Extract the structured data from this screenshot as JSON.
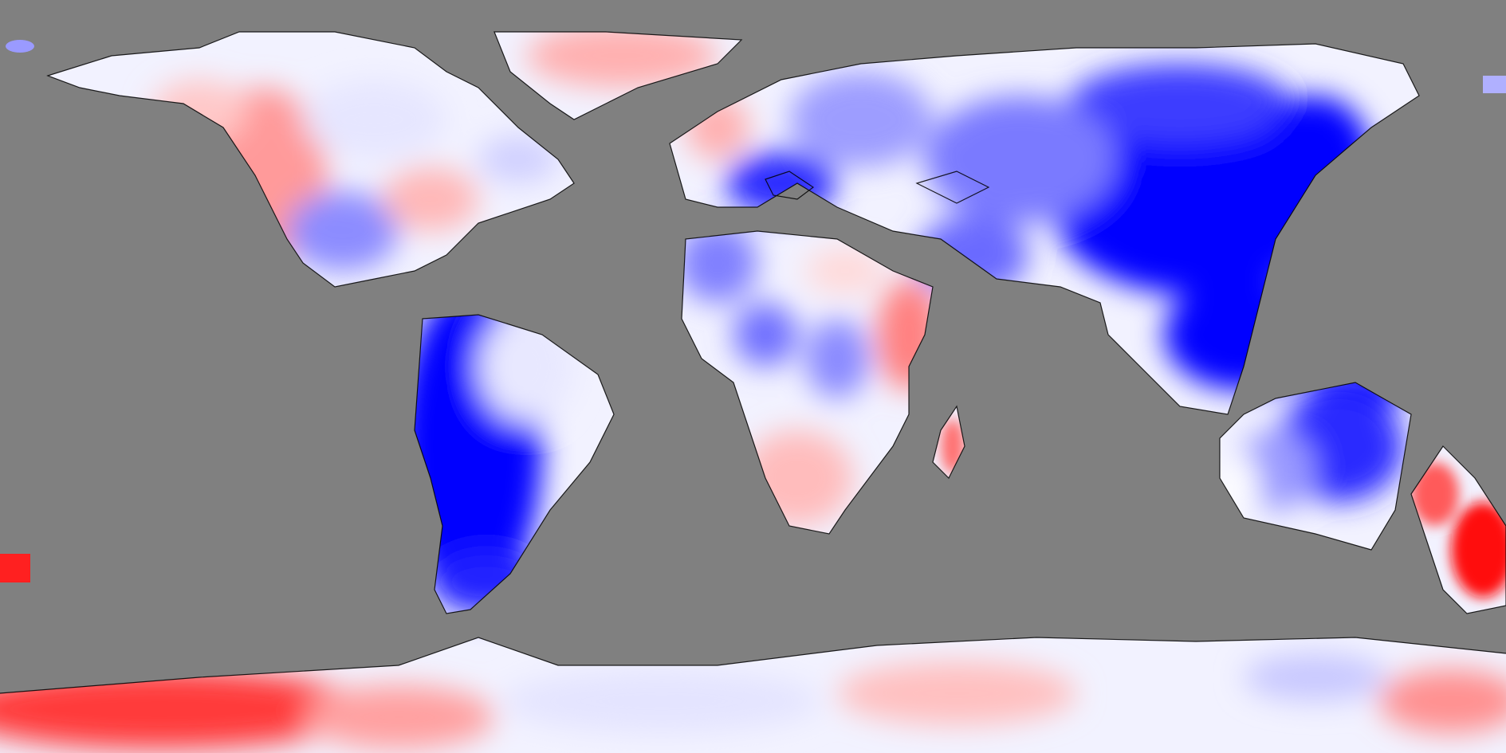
{
  "map": {
    "projection": "equirectangular",
    "ocean_color": "#808080",
    "coastline_color": "#000000",
    "palette": {
      "strong_negative": "#0000ff",
      "moderate_negative": "#6666ff",
      "weak_negative": "#ccccff",
      "neutral": "#ffffff",
      "weak_positive": "#ffcccc",
      "moderate_positive": "#ff8080",
      "strong_positive": "#ff0000"
    },
    "regions": [
      "north-america",
      "greenland",
      "south-america",
      "europe",
      "africa",
      "madagascar",
      "asia",
      "maritime-continent",
      "australia",
      "new-zealand",
      "antarctica"
    ]
  }
}
